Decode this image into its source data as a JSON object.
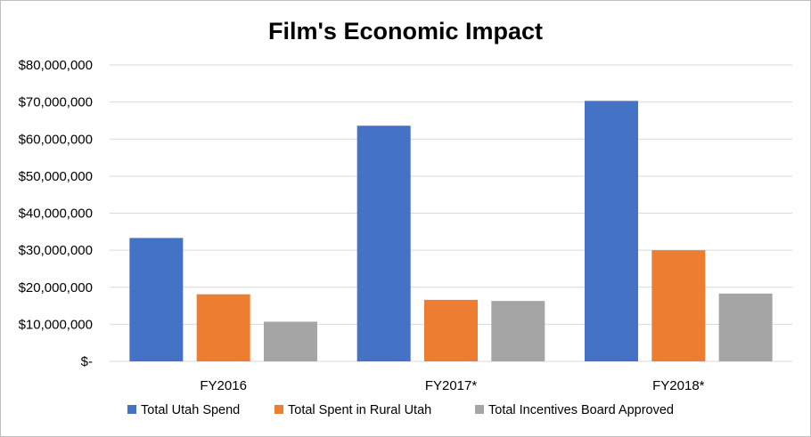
{
  "chart_data": {
    "type": "bar",
    "title": "Film's Economic Impact",
    "categories": [
      "FY2016",
      "FY2017*",
      "FY2018*"
    ],
    "series": [
      {
        "name": "Total Utah Spend",
        "values": [
          33300000,
          63600000,
          70300000
        ],
        "color": "#4472C4"
      },
      {
        "name": "Total Spent in Rural Utah",
        "values": [
          18100000,
          16600000,
          30000000
        ],
        "color": "#ED7D31"
      },
      {
        "name": "Total Incentives Board Approved",
        "values": [
          10700000,
          16300000,
          18300000
        ],
        "color": "#A5A5A5"
      }
    ],
    "ylim": [
      0,
      80000000
    ],
    "y_ticks": [
      0,
      10000000,
      20000000,
      30000000,
      40000000,
      50000000,
      60000000,
      70000000,
      80000000
    ],
    "y_tick_labels": [
      "$-",
      "$10,000,000",
      "$20,000,000",
      "$30,000,000",
      "$40,000,000",
      "$50,000,000",
      "$60,000,000",
      "$70,000,000",
      "$80,000,000"
    ],
    "grid": true,
    "gridline_color": "#D9D9D9",
    "legend_position": "bottom"
  }
}
